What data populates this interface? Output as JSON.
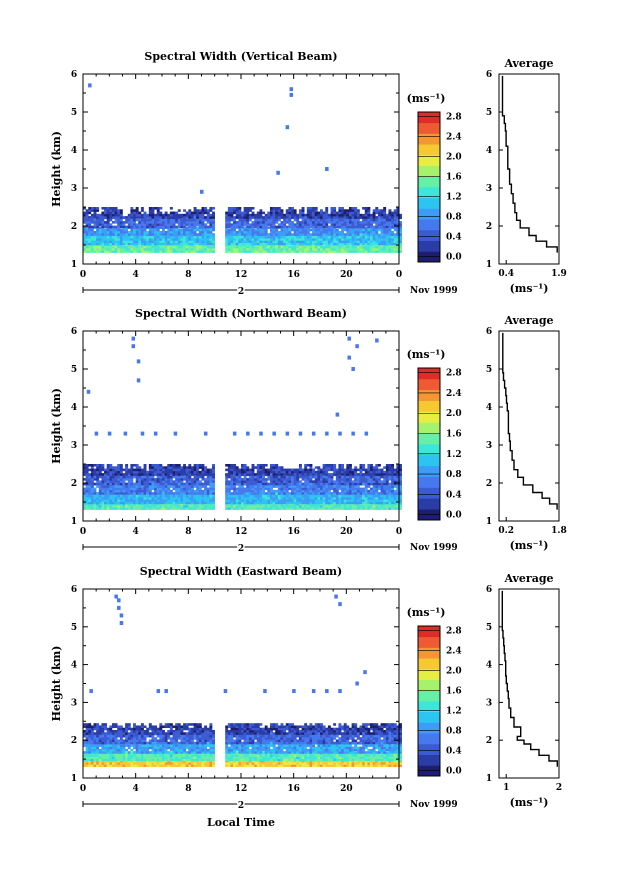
{
  "figure": {
    "xlabel": "Local Time",
    "date_label": "Nov 1999",
    "day_label": "2",
    "cbar_unit": "(ms⁻¹)",
    "avg_title": "Average",
    "avg_xlabel": "(ms⁻¹)"
  },
  "colors": {
    "scale": [
      "#1e1e6e",
      "#2a3ca6",
      "#3c5ad2",
      "#4678ee",
      "#3c9cf6",
      "#2cc4f0",
      "#3ce6d8",
      "#66f0a6",
      "#a6f26c",
      "#e6ee44",
      "#f6c832",
      "#f49632",
      "#ee5a32",
      "#e02c28"
    ]
  },
  "chart_data": [
    {
      "type": "heatmap",
      "title": "Spectral Width (Vertical Beam)",
      "ylabel": "Height (km)",
      "xlim": [
        0,
        24
      ],
      "ylim": [
        1,
        6
      ],
      "xticks": [
        "0",
        "4",
        "8",
        "12",
        "16",
        "20",
        "0"
      ],
      "yticks": [
        "1",
        "2",
        "3",
        "4",
        "5",
        "6"
      ],
      "gaps": [
        [
          10.0,
          10.6
        ]
      ],
      "bands": [
        {
          "from": 1.3,
          "to": 1.5,
          "value": 1.6
        },
        {
          "from": 1.5,
          "to": 1.75,
          "value": 1.2
        },
        {
          "from": 1.75,
          "to": 1.95,
          "value": 0.9
        },
        {
          "from": 1.95,
          "to": 2.2,
          "value": 0.6
        },
        {
          "from": 2.2,
          "to": 2.45,
          "value": 0.35
        }
      ],
      "scatter": [
        [
          0.5,
          5.7
        ],
        [
          9.0,
          2.9
        ],
        [
          15.8,
          5.6
        ],
        [
          15.8,
          5.45
        ],
        [
          15.5,
          4.6
        ],
        [
          14.8,
          3.4
        ],
        [
          18.5,
          3.5
        ]
      ],
      "colorbar": {
        "ticks": [
          "0.0",
          "0.4",
          "0.8",
          "1.2",
          "1.6",
          "2.0",
          "2.4",
          "2.8"
        ],
        "max": 3.0
      },
      "average": {
        "xlim": [
          0.2,
          1.9
        ],
        "xticks": [
          "0.4",
          "1.9"
        ],
        "x": [
          1.85,
          1.55,
          1.25,
          1.05,
          0.8,
          0.7,
          0.65,
          0.6,
          0.55,
          0.5,
          0.5,
          0.45,
          0.45,
          0.45,
          0.4,
          0.4,
          0.38,
          0.35,
          0.3,
          0.3,
          0.3,
          0.3,
          0.3,
          0.3
        ],
        "y": [
          1.3,
          1.45,
          1.6,
          1.75,
          1.95,
          2.15,
          2.35,
          2.6,
          2.85,
          3.1,
          3.3,
          3.5,
          3.7,
          3.9,
          4.1,
          4.3,
          4.5,
          4.7,
          4.9,
          5.1,
          5.3,
          5.5,
          5.7,
          5.95
        ]
      }
    },
    {
      "type": "heatmap",
      "title": "Spectral Width (Northward Beam)",
      "ylabel": "Height (km)",
      "xlim": [
        0,
        24
      ],
      "ylim": [
        1,
        6
      ],
      "xticks": [
        "0",
        "4",
        "8",
        "12",
        "16",
        "20",
        "0"
      ],
      "yticks": [
        "1",
        "2",
        "3",
        "4",
        "5",
        "6"
      ],
      "gaps": [
        [
          10.0,
          10.6
        ]
      ],
      "bands": [
        {
          "from": 1.3,
          "to": 1.45,
          "value": 1.5
        },
        {
          "from": 1.45,
          "to": 1.7,
          "value": 1.1
        },
        {
          "from": 1.7,
          "to": 1.95,
          "value": 0.8
        },
        {
          "from": 1.95,
          "to": 2.2,
          "value": 0.55
        },
        {
          "from": 2.2,
          "to": 2.5,
          "value": 0.35
        }
      ],
      "scatter": [
        [
          3.8,
          5.8
        ],
        [
          3.8,
          5.6
        ],
        [
          4.2,
          5.2
        ],
        [
          4.2,
          4.7
        ],
        [
          0.4,
          4.4
        ],
        [
          20.2,
          5.8
        ],
        [
          20.8,
          5.6
        ],
        [
          22.3,
          5.75
        ],
        [
          20.2,
          5.3
        ],
        [
          20.5,
          5.0
        ],
        [
          19.3,
          3.8
        ],
        [
          1.0,
          3.3
        ],
        [
          2.0,
          3.3
        ],
        [
          3.2,
          3.3
        ],
        [
          4.5,
          3.3
        ],
        [
          5.5,
          3.3
        ],
        [
          7.0,
          3.3
        ],
        [
          9.3,
          3.3
        ],
        [
          11.5,
          3.3
        ],
        [
          12.5,
          3.3
        ],
        [
          13.5,
          3.3
        ],
        [
          14.5,
          3.3
        ],
        [
          15.5,
          3.3
        ],
        [
          16.5,
          3.3
        ],
        [
          17.5,
          3.3
        ],
        [
          18.5,
          3.3
        ],
        [
          19.5,
          3.3
        ],
        [
          20.5,
          3.3
        ],
        [
          21.5,
          3.3
        ]
      ],
      "colorbar": {
        "ticks": [
          "0.0",
          "0.4",
          "0.8",
          "1.2",
          "1.6",
          "2.0",
          "2.4",
          "2.8"
        ],
        "max": 3.0
      },
      "average": {
        "xlim": [
          0.2,
          1.8
        ],
        "xticks": [
          "0.2",
          "1.8"
        ],
        "x": [
          1.75,
          1.55,
          1.35,
          1.1,
          0.85,
          0.7,
          0.6,
          0.55,
          0.5,
          0.48,
          0.45,
          0.45,
          0.45,
          0.42,
          0.4,
          0.38,
          0.35,
          0.32,
          0.3,
          0.3,
          0.3,
          0.3,
          0.3,
          0.3
        ],
        "y": [
          1.3,
          1.45,
          1.6,
          1.75,
          1.95,
          2.15,
          2.35,
          2.6,
          2.85,
          3.1,
          3.3,
          3.5,
          3.7,
          3.9,
          4.1,
          4.3,
          4.5,
          4.7,
          4.9,
          5.1,
          5.3,
          5.5,
          5.7,
          5.95
        ]
      }
    },
    {
      "type": "heatmap",
      "title": "Spectral Width (Eastward Beam)",
      "ylabel": "Height (km)",
      "xlim": [
        0,
        24
      ],
      "ylim": [
        1,
        6
      ],
      "xticks": [
        "0",
        "4",
        "8",
        "12",
        "16",
        "20",
        "0"
      ],
      "yticks": [
        "1",
        "2",
        "3",
        "4",
        "5",
        "6"
      ],
      "gaps": [
        [
          10.0,
          10.6
        ]
      ],
      "bands": [
        {
          "from": 1.3,
          "to": 1.45,
          "value": 2.2
        },
        {
          "from": 1.45,
          "to": 1.65,
          "value": 1.5
        },
        {
          "from": 1.65,
          "to": 1.9,
          "value": 1.0
        },
        {
          "from": 1.9,
          "to": 2.15,
          "value": 0.6
        },
        {
          "from": 2.15,
          "to": 2.45,
          "value": 0.35
        }
      ],
      "scatter": [
        [
          2.5,
          5.8
        ],
        [
          2.7,
          5.7
        ],
        [
          2.7,
          5.5
        ],
        [
          2.9,
          5.3
        ],
        [
          2.9,
          5.1
        ],
        [
          19.2,
          5.8
        ],
        [
          19.5,
          5.6
        ],
        [
          21.4,
          3.8
        ],
        [
          20.8,
          3.5
        ],
        [
          0.6,
          3.3
        ],
        [
          5.7,
          3.3
        ],
        [
          6.3,
          3.3
        ],
        [
          10.8,
          3.3
        ],
        [
          13.8,
          3.3
        ],
        [
          16.0,
          3.3
        ],
        [
          17.5,
          3.3
        ],
        [
          18.5,
          3.3
        ],
        [
          19.5,
          3.3
        ]
      ],
      "colorbar": {
        "ticks": [
          "0.0",
          "0.4",
          "0.8",
          "1.2",
          "1.6",
          "2.0",
          "2.4",
          "2.8"
        ],
        "max": 3.0
      },
      "average": {
        "xlim": [
          0.2,
          2.0
        ],
        "xticks": [
          "1",
          "2"
        ],
        "x": [
          1.95,
          1.7,
          1.4,
          1.15,
          0.95,
          0.75,
          0.85,
          0.65,
          0.55,
          0.5,
          0.48,
          0.45,
          0.42,
          0.4,
          0.4,
          0.38,
          0.36,
          0.34,
          0.32,
          0.3,
          0.3,
          0.3,
          0.3,
          0.3
        ],
        "y": [
          1.3,
          1.45,
          1.6,
          1.75,
          1.9,
          2.0,
          2.1,
          2.35,
          2.6,
          2.85,
          3.1,
          3.3,
          3.5,
          3.7,
          3.9,
          4.1,
          4.3,
          4.5,
          4.7,
          4.9,
          5.1,
          5.4,
          5.7,
          5.95
        ]
      }
    }
  ]
}
